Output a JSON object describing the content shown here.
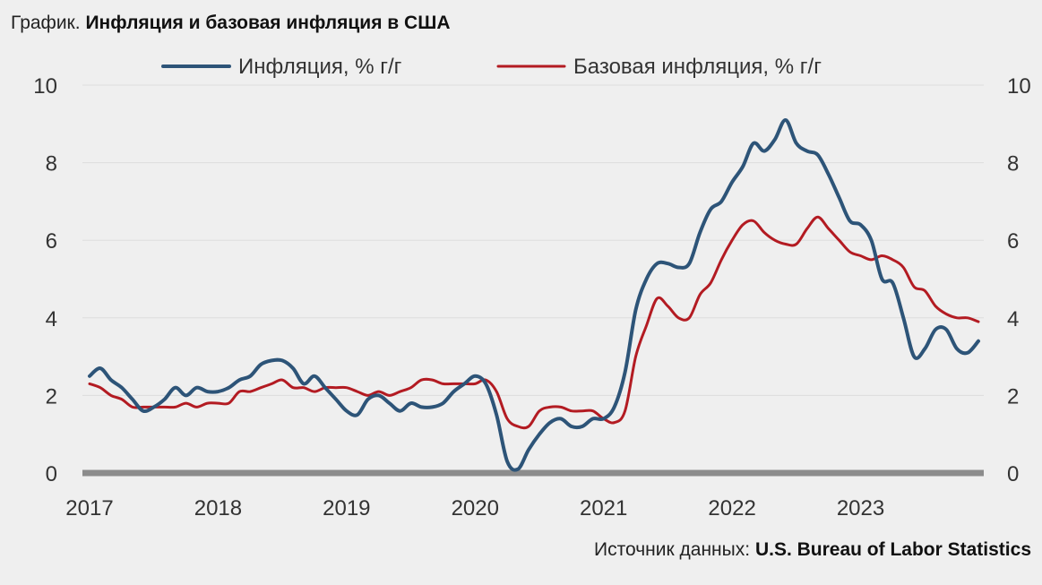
{
  "caption": {
    "prefix": "График.",
    "title": "Инфляция и базовая инфляция в США"
  },
  "source": {
    "prefix": "Источник данных:",
    "name": "U.S. Bureau of Labor Statistics"
  },
  "colors": {
    "inflation": "#2d5478",
    "core": "#b31b22",
    "zero_line": "#8c8c8c",
    "grid": "#dddddd"
  },
  "chart_data": {
    "type": "line",
    "title": "Инфляция и базовая инфляция в США",
    "xlabel": "",
    "ylabel": "",
    "x_ticks": [
      "2017",
      "2018",
      "2019",
      "2020",
      "2021",
      "2022",
      "2023"
    ],
    "y_ticks": [
      "0",
      "2",
      "4",
      "6",
      "8",
      "10"
    ],
    "ylim": [
      0,
      10
    ],
    "xlim": [
      "2017-01",
      "2023-12"
    ],
    "grid": true,
    "legend": "top",
    "series": [
      {
        "name": "Инфляция, % г/г",
        "color": "#2d5478",
        "points": [
          [
            "2017-01",
            2.5
          ],
          [
            "2017-02",
            2.7
          ],
          [
            "2017-03",
            2.4
          ],
          [
            "2017-04",
            2.2
          ],
          [
            "2017-05",
            1.9
          ],
          [
            "2017-06",
            1.6
          ],
          [
            "2017-07",
            1.7
          ],
          [
            "2017-08",
            1.9
          ],
          [
            "2017-09",
            2.2
          ],
          [
            "2017-10",
            2.0
          ],
          [
            "2017-11",
            2.2
          ],
          [
            "2017-12",
            2.1
          ],
          [
            "2018-01",
            2.1
          ],
          [
            "2018-02",
            2.2
          ],
          [
            "2018-03",
            2.4
          ],
          [
            "2018-04",
            2.5
          ],
          [
            "2018-05",
            2.8
          ],
          [
            "2018-06",
            2.9
          ],
          [
            "2018-07",
            2.9
          ],
          [
            "2018-08",
            2.7
          ],
          [
            "2018-09",
            2.3
          ],
          [
            "2018-10",
            2.5
          ],
          [
            "2018-11",
            2.2
          ],
          [
            "2018-12",
            1.9
          ],
          [
            "2019-01",
            1.6
          ],
          [
            "2019-02",
            1.5
          ],
          [
            "2019-03",
            1.9
          ],
          [
            "2019-04",
            2.0
          ],
          [
            "2019-05",
            1.8
          ],
          [
            "2019-06",
            1.6
          ],
          [
            "2019-07",
            1.8
          ],
          [
            "2019-08",
            1.7
          ],
          [
            "2019-09",
            1.7
          ],
          [
            "2019-10",
            1.8
          ],
          [
            "2019-11",
            2.1
          ],
          [
            "2019-12",
            2.3
          ],
          [
            "2020-01",
            2.5
          ],
          [
            "2020-02",
            2.3
          ],
          [
            "2020-03",
            1.5
          ],
          [
            "2020-04",
            0.3
          ],
          [
            "2020-05",
            0.1
          ],
          [
            "2020-06",
            0.6
          ],
          [
            "2020-07",
            1.0
          ],
          [
            "2020-08",
            1.3
          ],
          [
            "2020-09",
            1.4
          ],
          [
            "2020-10",
            1.2
          ],
          [
            "2020-11",
            1.2
          ],
          [
            "2020-12",
            1.4
          ],
          [
            "2021-01",
            1.4
          ],
          [
            "2021-02",
            1.7
          ],
          [
            "2021-03",
            2.6
          ],
          [
            "2021-04",
            4.2
          ],
          [
            "2021-05",
            5.0
          ],
          [
            "2021-06",
            5.4
          ],
          [
            "2021-07",
            5.4
          ],
          [
            "2021-08",
            5.3
          ],
          [
            "2021-09",
            5.4
          ],
          [
            "2021-10",
            6.2
          ],
          [
            "2021-11",
            6.8
          ],
          [
            "2021-12",
            7.0
          ],
          [
            "2022-01",
            7.5
          ],
          [
            "2022-02",
            7.9
          ],
          [
            "2022-03",
            8.5
          ],
          [
            "2022-04",
            8.3
          ],
          [
            "2022-05",
            8.6
          ],
          [
            "2022-06",
            9.1
          ],
          [
            "2022-07",
            8.5
          ],
          [
            "2022-08",
            8.3
          ],
          [
            "2022-09",
            8.2
          ],
          [
            "2022-10",
            7.7
          ],
          [
            "2022-11",
            7.1
          ],
          [
            "2022-12",
            6.5
          ],
          [
            "2023-01",
            6.4
          ],
          [
            "2023-02",
            6.0
          ],
          [
            "2023-03",
            5.0
          ],
          [
            "2023-04",
            4.9
          ],
          [
            "2023-05",
            4.0
          ],
          [
            "2023-06",
            3.0
          ],
          [
            "2023-07",
            3.2
          ],
          [
            "2023-08",
            3.7
          ],
          [
            "2023-09",
            3.7
          ],
          [
            "2023-10",
            3.2
          ],
          [
            "2023-11",
            3.1
          ],
          [
            "2023-12",
            3.4
          ]
        ]
      },
      {
        "name": "Базовая инфляция, % г/г",
        "color": "#b31b22",
        "points": [
          [
            "2017-01",
            2.3
          ],
          [
            "2017-02",
            2.2
          ],
          [
            "2017-03",
            2.0
          ],
          [
            "2017-04",
            1.9
          ],
          [
            "2017-05",
            1.7
          ],
          [
            "2017-06",
            1.7
          ],
          [
            "2017-07",
            1.7
          ],
          [
            "2017-08",
            1.7
          ],
          [
            "2017-09",
            1.7
          ],
          [
            "2017-10",
            1.8
          ],
          [
            "2017-11",
            1.7
          ],
          [
            "2017-12",
            1.8
          ],
          [
            "2018-01",
            1.8
          ],
          [
            "2018-02",
            1.8
          ],
          [
            "2018-03",
            2.1
          ],
          [
            "2018-04",
            2.1
          ],
          [
            "2018-05",
            2.2
          ],
          [
            "2018-06",
            2.3
          ],
          [
            "2018-07",
            2.4
          ],
          [
            "2018-08",
            2.2
          ],
          [
            "2018-09",
            2.2
          ],
          [
            "2018-10",
            2.1
          ],
          [
            "2018-11",
            2.2
          ],
          [
            "2018-12",
            2.2
          ],
          [
            "2019-01",
            2.2
          ],
          [
            "2019-02",
            2.1
          ],
          [
            "2019-03",
            2.0
          ],
          [
            "2019-04",
            2.1
          ],
          [
            "2019-05",
            2.0
          ],
          [
            "2019-06",
            2.1
          ],
          [
            "2019-07",
            2.2
          ],
          [
            "2019-08",
            2.4
          ],
          [
            "2019-09",
            2.4
          ],
          [
            "2019-10",
            2.3
          ],
          [
            "2019-11",
            2.3
          ],
          [
            "2019-12",
            2.3
          ],
          [
            "2020-01",
            2.3
          ],
          [
            "2020-02",
            2.4
          ],
          [
            "2020-03",
            2.1
          ],
          [
            "2020-04",
            1.4
          ],
          [
            "2020-05",
            1.2
          ],
          [
            "2020-06",
            1.2
          ],
          [
            "2020-07",
            1.6
          ],
          [
            "2020-08",
            1.7
          ],
          [
            "2020-09",
            1.7
          ],
          [
            "2020-10",
            1.6
          ],
          [
            "2020-11",
            1.6
          ],
          [
            "2020-12",
            1.6
          ],
          [
            "2021-01",
            1.4
          ],
          [
            "2021-02",
            1.3
          ],
          [
            "2021-03",
            1.6
          ],
          [
            "2021-04",
            3.0
          ],
          [
            "2021-05",
            3.8
          ],
          [
            "2021-06",
            4.5
          ],
          [
            "2021-07",
            4.3
          ],
          [
            "2021-08",
            4.0
          ],
          [
            "2021-09",
            4.0
          ],
          [
            "2021-10",
            4.6
          ],
          [
            "2021-11",
            4.9
          ],
          [
            "2021-12",
            5.5
          ],
          [
            "2022-01",
            6.0
          ],
          [
            "2022-02",
            6.4
          ],
          [
            "2022-03",
            6.5
          ],
          [
            "2022-04",
            6.2
          ],
          [
            "2022-05",
            6.0
          ],
          [
            "2022-06",
            5.9
          ],
          [
            "2022-07",
            5.9
          ],
          [
            "2022-08",
            6.3
          ],
          [
            "2022-09",
            6.6
          ],
          [
            "2022-10",
            6.3
          ],
          [
            "2022-11",
            6.0
          ],
          [
            "2022-12",
            5.7
          ],
          [
            "2023-01",
            5.6
          ],
          [
            "2023-02",
            5.5
          ],
          [
            "2023-03",
            5.6
          ],
          [
            "2023-04",
            5.5
          ],
          [
            "2023-05",
            5.3
          ],
          [
            "2023-06",
            4.8
          ],
          [
            "2023-07",
            4.7
          ],
          [
            "2023-08",
            4.3
          ],
          [
            "2023-09",
            4.1
          ],
          [
            "2023-10",
            4.0
          ],
          [
            "2023-11",
            4.0
          ],
          [
            "2023-12",
            3.9
          ]
        ]
      }
    ]
  }
}
